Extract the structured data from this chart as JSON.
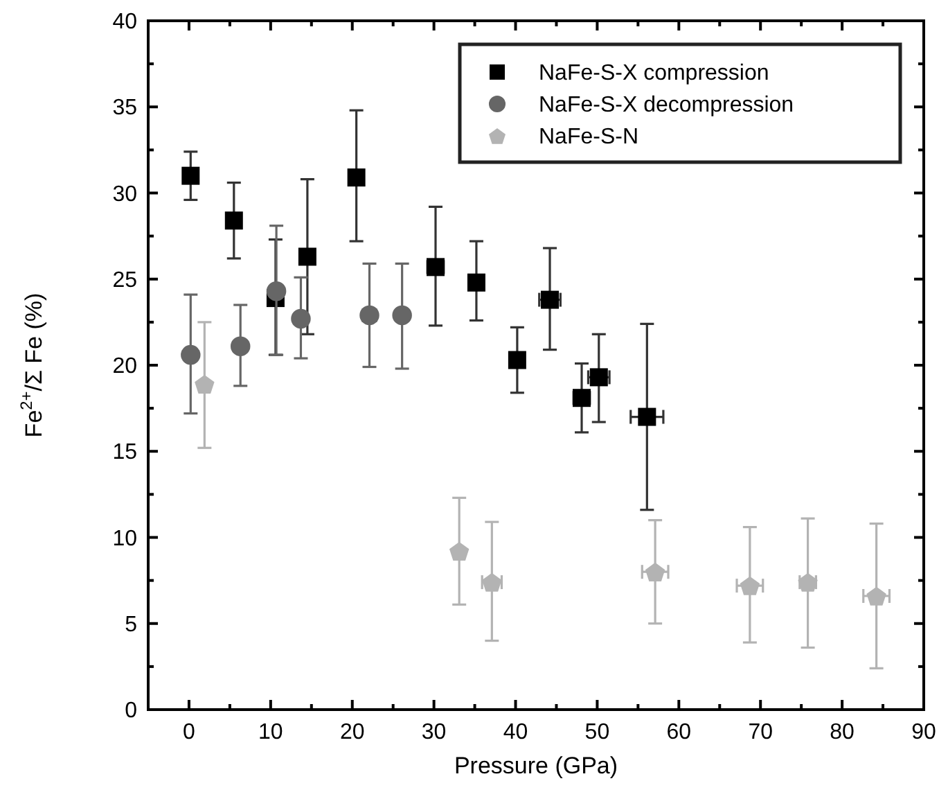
{
  "chart_data": {
    "type": "scatter",
    "xlabel": "Pressure (GPa)",
    "ylabel": "Fe$^{2+}$/Σ Fe (%)",
    "xlim": [
      -5,
      90
    ],
    "ylim": [
      0,
      40
    ],
    "xticks": [
      0,
      {
        "value": 5,
        "label": null
      },
      10,
      {
        "value": 15,
        "label": null
      },
      20,
      {
        "value": 25,
        "label": null
      },
      30,
      {
        "value": 35,
        "label": null
      },
      40,
      {
        "value": 45,
        "label": null
      },
      50,
      {
        "value": 55,
        "label": null
      },
      60,
      {
        "value": 65,
        "label": null
      },
      70,
      {
        "value": 75,
        "label": null
      },
      80,
      {
        "value": 85,
        "label": null
      },
      90
    ],
    "yticks": [
      0,
      {
        "value": 2.5,
        "label": null
      },
      5,
      {
        "value": 7.5,
        "label": null
      },
      10,
      {
        "value": 12.5,
        "label": null
      },
      15,
      {
        "value": 17.5,
        "label": null
      },
      20,
      {
        "value": 22.5,
        "label": null
      },
      25,
      {
        "value": 27.5,
        "label": null
      },
      30,
      {
        "value": 32.5,
        "label": null
      },
      35,
      {
        "value": 37.5,
        "label": null
      },
      40
    ],
    "legend": "top right",
    "grid": false,
    "series": [
      {
        "name": "NaFe-S-X compression",
        "color": "#000000",
        "marker": "square",
        "x": [
          0.2,
          5.5,
          10.6,
          14.5,
          20.5,
          30.2,
          35.2,
          40.2,
          44.2,
          48.1,
          50.2,
          56.1
        ],
        "values": [
          31.0,
          28.4,
          23.9,
          26.3,
          30.9,
          25.7,
          24.8,
          20.3,
          23.8,
          18.1,
          19.3,
          17.0
        ],
        "errors": [
          [
            29.6,
            32.4
          ],
          [
            26.2,
            30.6
          ],
          [
            20.6,
            27.3
          ],
          [
            21.8,
            30.8
          ],
          [
            27.2,
            34.8
          ],
          [
            22.3,
            29.2
          ],
          [
            22.6,
            27.2
          ],
          [
            18.4,
            22.2
          ],
          [
            20.9,
            26.8
          ],
          [
            16.1,
            20.1
          ],
          [
            16.7,
            21.8
          ],
          [
            11.6,
            22.4
          ]
        ],
        "xerrors": [
          null,
          null,
          null,
          null,
          null,
          1,
          null,
          null,
          1.3,
          1,
          1.3,
          2
        ]
      },
      {
        "name": "NaFe-S-X decompression",
        "color": "#666666",
        "marker": "circle",
        "x": [
          0.2,
          6.3,
          10.7,
          13.7,
          22.1,
          26.1
        ],
        "values": [
          20.6,
          21.1,
          24.3,
          22.7,
          22.9,
          22.9
        ],
        "errors": [
          [
            17.2,
            24.1
          ],
          [
            18.8,
            23.5
          ],
          [
            20.6,
            28.1
          ],
          [
            20.4,
            25.1
          ],
          [
            19.9,
            25.9
          ],
          [
            19.8,
            25.9
          ]
        ],
        "xerrors": [
          null,
          null,
          null,
          null,
          0.8,
          null
        ]
      },
      {
        "name": "NaFe-S-N",
        "color": "#b3b3b3",
        "x": [
          1.9,
          33.1,
          37.1,
          57.1,
          68.7,
          75.8,
          84.2
        ],
        "values": [
          18.9,
          9.2,
          7.4,
          8.0,
          7.2,
          7.4,
          6.6
        ],
        "errors": [
          [
            15.2,
            22.5
          ],
          [
            6.1,
            12.3
          ],
          [
            4.0,
            10.9
          ],
          [
            5.0,
            11.0
          ],
          [
            3.9,
            10.6
          ],
          [
            3.6,
            11.1
          ],
          [
            2.4,
            10.8
          ]
        ],
        "xerrors": [
          null,
          null,
          1.2,
          1.6,
          1.6,
          1,
          1.6
        ]
      }
    ]
  }
}
